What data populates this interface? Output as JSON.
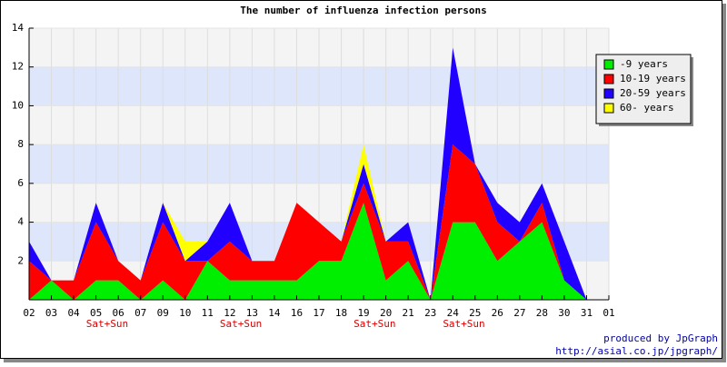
{
  "chart_data": {
    "type": "stacked_area",
    "title": "The number of influenza infection persons",
    "categories": [
      "02",
      "03",
      "04",
      "05",
      "06",
      "07",
      "09",
      "10",
      "11",
      "12",
      "13",
      "14",
      "16",
      "17",
      "18",
      "19",
      "20",
      "21",
      "23",
      "24",
      "25",
      "26",
      "27",
      "28",
      "30",
      "31",
      "01"
    ],
    "series": [
      {
        "name": "-9 years",
        "color": "#00ee00",
        "values": [
          0,
          1,
          0,
          1,
          1,
          0,
          1,
          0,
          2,
          1,
          1,
          1,
          1,
          2,
          2,
          5,
          1,
          2,
          0,
          4,
          4,
          2,
          3,
          4,
          1,
          0,
          null
        ]
      },
      {
        "name": "10-19 years",
        "color": "#ff0000",
        "values": [
          2,
          0,
          1,
          3,
          1,
          1,
          3,
          2,
          0,
          2,
          1,
          1,
          4,
          2,
          1,
          1,
          2,
          1,
          0,
          4,
          3,
          2,
          0,
          1,
          0,
          0,
          null
        ]
      },
      {
        "name": "20-59 years",
        "color": "#2200ff",
        "values": [
          1,
          0,
          0,
          1,
          0,
          0,
          1,
          0,
          1,
          2,
          0,
          0,
          0,
          0,
          0,
          1,
          0,
          1,
          0,
          5,
          0,
          1,
          1,
          1,
          2,
          0,
          null
        ]
      },
      {
        "name": "60- years",
        "color": "#ffff00",
        "values": [
          0,
          0,
          0,
          0,
          0,
          0,
          0,
          1,
          0,
          0,
          0,
          0,
          0,
          0,
          0,
          1,
          0,
          0,
          0,
          0,
          0,
          0,
          0,
          0,
          0,
          0,
          null
        ]
      }
    ],
    "ylim": [
      0,
      14
    ],
    "yticks": [
      2,
      4,
      6,
      8,
      10,
      12,
      14
    ],
    "grid": true,
    "annotations": [
      {
        "text": "Sat+Sun",
        "category": "05"
      },
      {
        "text": "Sat+Sun",
        "category": "12"
      },
      {
        "text": "Sat+Sun",
        "category": "19"
      },
      {
        "text": "Sat+Sun",
        "category": "24"
      }
    ],
    "footer": [
      "produced by JpGraph",
      "http://asial.co.jp/jpgraph/"
    ]
  }
}
